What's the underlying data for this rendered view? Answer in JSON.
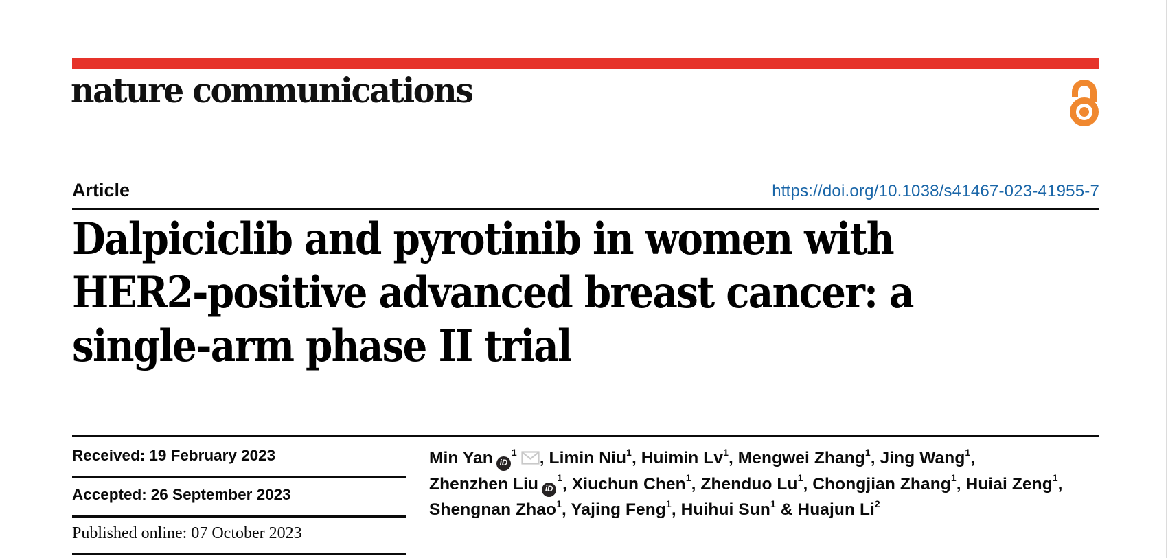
{
  "journal": {
    "name": "nature communications"
  },
  "colors": {
    "brand_red": "#E6332A",
    "link_blue": "#1A66A8",
    "open_access_orange": "#F0882F",
    "envelope_gray": "#C9C9C9",
    "orcid_black": "#262223"
  },
  "icons": {
    "open_access": "open-padlock",
    "orcid_label": "iD",
    "envelope": "envelope-outline"
  },
  "article": {
    "type_label": "Article",
    "doi": "https://doi.org/10.1038/s41467-023-41955-7",
    "title_lines": [
      "Dalpiciclib and pyrotinib in women with",
      "HER2-positive advanced breast cancer: a",
      "single-arm phase II trial"
    ]
  },
  "dates": {
    "received": {
      "label": "Received:",
      "value": "19 February 2023"
    },
    "accepted": {
      "label": "Accepted:",
      "value": "26 September 2023"
    },
    "published": {
      "label": "Published online:",
      "value": "07 October 2023"
    }
  },
  "authors": {
    "lines": [
      [
        [
          "t",
          "Min Yan"
        ],
        [
          "orcid"
        ],
        [
          "sup",
          "1"
        ],
        [
          "mail"
        ],
        [
          "t",
          ", Limin Niu"
        ],
        [
          "sup",
          "1"
        ],
        [
          "t",
          ", Huimin Lv"
        ],
        [
          "sup",
          "1"
        ],
        [
          "t",
          ", Mengwei Zhang"
        ],
        [
          "sup",
          "1"
        ],
        [
          "t",
          ", Jing Wang"
        ],
        [
          "sup",
          "1"
        ],
        [
          "t",
          ","
        ]
      ],
      [
        [
          "t",
          "Zhenzhen Liu"
        ],
        [
          "orcid"
        ],
        [
          "sup",
          "1"
        ],
        [
          "t",
          ", Xiuchun Chen"
        ],
        [
          "sup",
          "1"
        ],
        [
          "t",
          ", Zhenduo Lu"
        ],
        [
          "sup",
          "1"
        ],
        [
          "t",
          ", Chongjian Zhang"
        ],
        [
          "sup",
          "1"
        ],
        [
          "t",
          ", Huiai Zeng"
        ],
        [
          "sup",
          "1"
        ],
        [
          "t",
          ","
        ]
      ],
      [
        [
          "t",
          "Shengnan Zhao"
        ],
        [
          "sup",
          "1"
        ],
        [
          "t",
          ", Yajing Feng"
        ],
        [
          "sup",
          "1"
        ],
        [
          "t",
          ", Huihui Sun"
        ],
        [
          "sup",
          "1"
        ],
        [
          "t",
          " & Huajun Li"
        ],
        [
          "sup",
          "2"
        ]
      ]
    ]
  }
}
